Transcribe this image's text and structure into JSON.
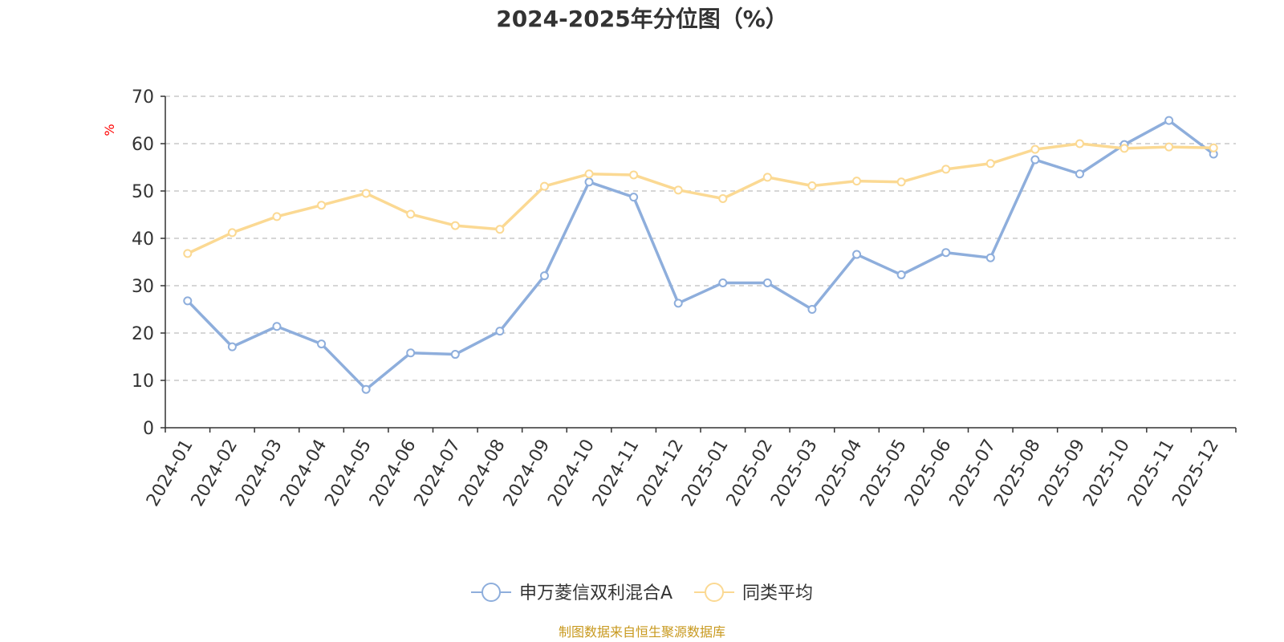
{
  "chart_data": {
    "type": "line",
    "title": "2024-2025年分位图（%）",
    "ylabel": "%",
    "xlabel": "",
    "ylim": [
      0,
      70
    ],
    "yticks": [
      0,
      10,
      20,
      30,
      40,
      50,
      60,
      70
    ],
    "grid": true,
    "legend_position": "bottom",
    "categories": [
      "2024-01",
      "2024-02",
      "2024-03",
      "2024-04",
      "2024-05",
      "2024-06",
      "2024-07",
      "2024-08",
      "2024-09",
      "2024-10",
      "2024-11",
      "2024-12",
      "2025-01",
      "2025-02",
      "2025-03",
      "2025-04",
      "2025-05",
      "2025-06",
      "2025-07",
      "2025-08",
      "2025-09",
      "2025-10",
      "2025-11",
      "2025-12"
    ],
    "series": [
      {
        "name": "申万菱信双利混合A",
        "color": "#8eaedc",
        "values": [
          26.8,
          17.1,
          21.4,
          17.7,
          8.1,
          15.8,
          15.5,
          20.4,
          32.1,
          51.9,
          48.7,
          26.3,
          30.6,
          30.6,
          25.0,
          36.6,
          32.3,
          37.0,
          35.9,
          56.6,
          53.6,
          59.8,
          64.9,
          57.8
        ]
      },
      {
        "name": "同类平均",
        "color": "#fbd993",
        "values": [
          36.8,
          41.2,
          44.6,
          47.0,
          49.5,
          45.1,
          42.7,
          41.9,
          51.0,
          53.6,
          53.4,
          50.2,
          48.4,
          52.9,
          51.1,
          52.1,
          51.9,
          54.6,
          55.8,
          58.8,
          60.0,
          59.0,
          59.3,
          59.1
        ]
      }
    ]
  },
  "source": "制图数据来自恒生聚源数据库"
}
